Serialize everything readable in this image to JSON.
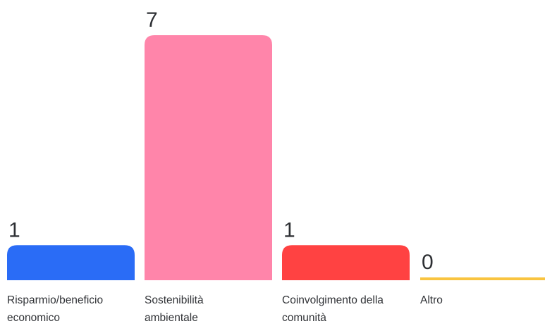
{
  "chart_data": {
    "type": "bar",
    "categories": [
      [
        "Risparmio/beneficio",
        "economico"
      ],
      [
        "Sostenibilità",
        "ambientale"
      ],
      [
        "Coinvolgimento della",
        "comunità"
      ],
      [
        "Altro"
      ]
    ],
    "values": [
      1,
      7,
      1,
      0
    ],
    "colors": [
      "#2a6cf6",
      "#ff85aa",
      "#ff4242",
      "#f9c440"
    ],
    "value_labels": [
      "1",
      "7",
      "1",
      "0"
    ],
    "ylim": [
      0,
      7
    ],
    "grid": false,
    "legend": "none"
  },
  "colors": {
    "value_text": "#2d2f33",
    "category_text": "#303236"
  }
}
